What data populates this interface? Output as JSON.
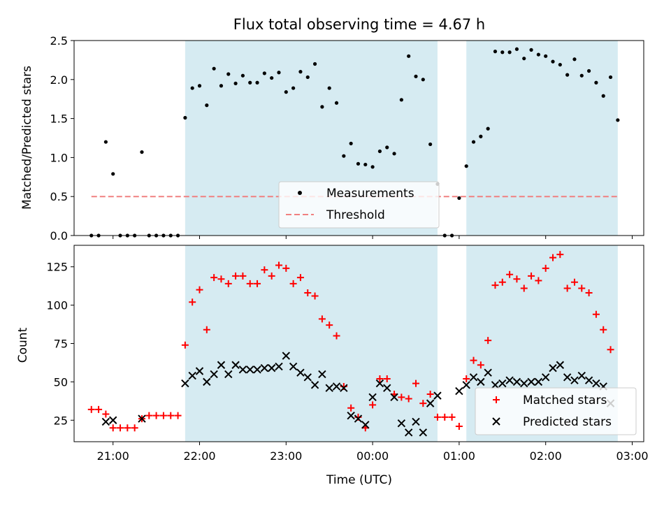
{
  "chart_data": [
    {
      "type": "scatter",
      "title": "Flux total observing time = 4.67 h",
      "ylabel": "Matched/Predicted stars",
      "xlabel": "",
      "xlim": [
        "20:33",
        "03:08"
      ],
      "ylim": [
        0,
        2.5
      ],
      "y_ticks": [
        "0.0",
        "0.5",
        "1.0",
        "1.5",
        "2.0",
        "2.5"
      ],
      "shaded_regions": [
        [
          "21:50",
          "00:45"
        ],
        [
          "01:05",
          "02:50"
        ]
      ],
      "shade_color": "#add8e6",
      "threshold": {
        "value": 0.5,
        "x_start": "20:45",
        "x_end": "02:50",
        "color": "#f08080",
        "style": "dashed"
      },
      "legend": {
        "position": "lower-center",
        "entries": [
          "Measurements",
          "Threshold"
        ]
      },
      "series": [
        {
          "name": "Measurements",
          "marker": "dot",
          "color": "#000000",
          "points": [
            [
              "20:45",
              0.0
            ],
            [
              "20:50",
              0.0
            ],
            [
              "20:55",
              1.2
            ],
            [
              "21:00",
              0.79
            ],
            [
              "21:05",
              0.0
            ],
            [
              "21:10",
              0.0
            ],
            [
              "21:15",
              0.0
            ],
            [
              "21:20",
              1.07
            ],
            [
              "21:25",
              0.0
            ],
            [
              "21:30",
              0.0
            ],
            [
              "21:35",
              0.0
            ],
            [
              "21:40",
              0.0
            ],
            [
              "21:45",
              0.0
            ],
            [
              "21:50",
              1.51
            ],
            [
              "21:55",
              1.89
            ],
            [
              "22:00",
              1.92
            ],
            [
              "22:05",
              1.67
            ],
            [
              "22:10",
              2.14
            ],
            [
              "22:15",
              1.92
            ],
            [
              "22:20",
              2.07
            ],
            [
              "22:25",
              1.95
            ],
            [
              "22:30",
              2.05
            ],
            [
              "22:35",
              1.96
            ],
            [
              "22:40",
              1.96
            ],
            [
              "22:45",
              2.08
            ],
            [
              "22:50",
              2.02
            ],
            [
              "22:55",
              2.09
            ],
            [
              "23:00",
              1.84
            ],
            [
              "23:05",
              1.89
            ],
            [
              "23:10",
              2.1
            ],
            [
              "23:15",
              2.03
            ],
            [
              "23:20",
              2.2
            ],
            [
              "23:25",
              1.65
            ],
            [
              "23:30",
              1.89
            ],
            [
              "23:35",
              1.7
            ],
            [
              "23:40",
              1.02
            ],
            [
              "23:45",
              1.18
            ],
            [
              "23:50",
              0.92
            ],
            [
              "23:55",
              0.91
            ],
            [
              "00:00",
              0.88
            ],
            [
              "00:05",
              1.08
            ],
            [
              "00:10",
              1.13
            ],
            [
              "00:15",
              1.05
            ],
            [
              "00:20",
              1.74
            ],
            [
              "00:25",
              2.3
            ],
            [
              "00:30",
              2.04
            ],
            [
              "00:35",
              2.0
            ],
            [
              "00:40",
              1.17
            ],
            [
              "00:45",
              0.66
            ],
            [
              "00:50",
              0.0
            ],
            [
              "00:55",
              0.0
            ],
            [
              "01:00",
              0.48
            ],
            [
              "01:05",
              0.89
            ],
            [
              "01:10",
              1.2
            ],
            [
              "01:15",
              1.27
            ],
            [
              "01:20",
              1.37
            ],
            [
              "01:25",
              2.36
            ],
            [
              "01:30",
              2.35
            ],
            [
              "01:35",
              2.35
            ],
            [
              "01:40",
              2.39
            ],
            [
              "01:45",
              2.27
            ],
            [
              "01:50",
              2.38
            ],
            [
              "01:55",
              2.32
            ],
            [
              "02:00",
              2.3
            ],
            [
              "02:05",
              2.23
            ],
            [
              "02:10",
              2.19
            ],
            [
              "02:15",
              2.06
            ],
            [
              "02:20",
              2.26
            ],
            [
              "02:25",
              2.05
            ],
            [
              "02:30",
              2.11
            ],
            [
              "02:35",
              1.96
            ],
            [
              "02:40",
              1.79
            ],
            [
              "02:45",
              2.03
            ],
            [
              "02:50",
              1.48
            ]
          ]
        }
      ]
    },
    {
      "type": "scatter",
      "title": "",
      "ylabel": "Count",
      "xlabel": "Time (UTC)",
      "xlim": [
        "20:33",
        "03:08"
      ],
      "ylim": [
        11,
        139
      ],
      "x_ticks": [
        "21:00",
        "22:00",
        "23:00",
        "00:00",
        "01:00",
        "02:00",
        "03:00"
      ],
      "y_ticks": [
        "25",
        "50",
        "75",
        "100",
        "125"
      ],
      "shaded_regions": [
        [
          "21:50",
          "00:45"
        ],
        [
          "01:05",
          "02:50"
        ]
      ],
      "shade_color": "#add8e6",
      "legend": {
        "position": "lower-right",
        "entries": [
          "Matched stars",
          "Predicted stars"
        ]
      },
      "series": [
        {
          "name": "Matched stars",
          "marker": "plus",
          "color": "#ff0000",
          "points": [
            [
              "20:45",
              32
            ],
            [
              "20:50",
              32
            ],
            [
              "20:55",
              29
            ],
            [
              "21:00",
              20
            ],
            [
              "21:05",
              20
            ],
            [
              "21:10",
              20
            ],
            [
              "21:15",
              20
            ],
            [
              "21:20",
              26
            ],
            [
              "21:25",
              28
            ],
            [
              "21:30",
              28
            ],
            [
              "21:35",
              28
            ],
            [
              "21:40",
              28
            ],
            [
              "21:45",
              28
            ],
            [
              "21:50",
              74
            ],
            [
              "21:55",
              102
            ],
            [
              "22:00",
              110
            ],
            [
              "22:05",
              84
            ],
            [
              "22:10",
              118
            ],
            [
              "22:15",
              117
            ],
            [
              "22:20",
              114
            ],
            [
              "22:25",
              119
            ],
            [
              "22:30",
              119
            ],
            [
              "22:35",
              114
            ],
            [
              "22:40",
              114
            ],
            [
              "22:45",
              123
            ],
            [
              "22:50",
              119
            ],
            [
              "22:55",
              126
            ],
            [
              "23:00",
              124
            ],
            [
              "23:05",
              114
            ],
            [
              "23:10",
              118
            ],
            [
              "23:15",
              108
            ],
            [
              "23:20",
              106
            ],
            [
              "23:25",
              91
            ],
            [
              "23:30",
              87
            ],
            [
              "23:35",
              80
            ],
            [
              "23:40",
              47
            ],
            [
              "23:45",
              33
            ],
            [
              "23:50",
              27
            ],
            [
              "23:55",
              20
            ],
            [
              "00:00",
              35
            ],
            [
              "00:05",
              52
            ],
            [
              "00:10",
              52
            ],
            [
              "00:15",
              42
            ],
            [
              "00:20",
              40
            ],
            [
              "00:25",
              39
            ],
            [
              "00:30",
              49
            ],
            [
              "00:35",
              36
            ],
            [
              "00:40",
              42
            ],
            [
              "00:45",
              27
            ],
            [
              "00:50",
              27
            ],
            [
              "00:55",
              27
            ],
            [
              "01:00",
              21
            ],
            [
              "01:05",
              52
            ],
            [
              "01:10",
              64
            ],
            [
              "01:15",
              61
            ],
            [
              "01:20",
              77
            ],
            [
              "01:25",
              113
            ],
            [
              "01:30",
              115
            ],
            [
              "01:35",
              120
            ],
            [
              "01:40",
              117
            ],
            [
              "01:45",
              111
            ],
            [
              "01:50",
              119
            ],
            [
              "01:55",
              116
            ],
            [
              "02:00",
              124
            ],
            [
              "02:05",
              131
            ],
            [
              "02:10",
              133
            ],
            [
              "02:15",
              111
            ],
            [
              "02:20",
              115
            ],
            [
              "02:25",
              111
            ],
            [
              "02:30",
              108
            ],
            [
              "02:35",
              94
            ],
            [
              "02:40",
              84
            ],
            [
              "02:45",
              71
            ]
          ]
        },
        {
          "name": "Predicted stars",
          "marker": "x",
          "color": "#000000",
          "points": [
            [
              "20:55",
              24
            ],
            [
              "21:00",
              25
            ],
            [
              "21:20",
              26
            ],
            [
              "21:50",
              49
            ],
            [
              "21:55",
              54
            ],
            [
              "22:00",
              57
            ],
            [
              "22:05",
              50
            ],
            [
              "22:10",
              55
            ],
            [
              "22:15",
              61
            ],
            [
              "22:20",
              55
            ],
            [
              "22:25",
              61
            ],
            [
              "22:30",
              58
            ],
            [
              "22:35",
              58
            ],
            [
              "22:40",
              58
            ],
            [
              "22:45",
              59
            ],
            [
              "22:50",
              59
            ],
            [
              "22:55",
              60
            ],
            [
              "23:00",
              67
            ],
            [
              "23:05",
              60
            ],
            [
              "23:10",
              56
            ],
            [
              "23:15",
              53
            ],
            [
              "23:20",
              48
            ],
            [
              "23:25",
              55
            ],
            [
              "23:30",
              46
            ],
            [
              "23:35",
              47
            ],
            [
              "23:40",
              46
            ],
            [
              "23:45",
              28
            ],
            [
              "23:50",
              26
            ],
            [
              "23:55",
              22
            ],
            [
              "00:00",
              40
            ],
            [
              "00:05",
              49
            ],
            [
              "00:10",
              46
            ],
            [
              "00:15",
              40
            ],
            [
              "00:20",
              23
            ],
            [
              "00:25",
              17
            ],
            [
              "00:30",
              24
            ],
            [
              "00:35",
              17
            ],
            [
              "00:40",
              36
            ],
            [
              "00:45",
              41
            ],
            [
              "01:00",
              44
            ],
            [
              "01:05",
              48
            ],
            [
              "01:10",
              53
            ],
            [
              "01:15",
              50
            ],
            [
              "01:20",
              56
            ],
            [
              "01:25",
              48
            ],
            [
              "01:30",
              49
            ],
            [
              "01:35",
              51
            ],
            [
              "01:40",
              50
            ],
            [
              "01:45",
              49
            ],
            [
              "01:50",
              50
            ],
            [
              "01:55",
              50
            ],
            [
              "02:00",
              53
            ],
            [
              "02:05",
              59
            ],
            [
              "02:10",
              61
            ],
            [
              "02:15",
              53
            ],
            [
              "02:20",
              51
            ],
            [
              "02:25",
              54
            ],
            [
              "02:30",
              51
            ],
            [
              "02:35",
              49
            ],
            [
              "02:40",
              47
            ],
            [
              "02:45",
              36
            ]
          ]
        }
      ]
    }
  ]
}
